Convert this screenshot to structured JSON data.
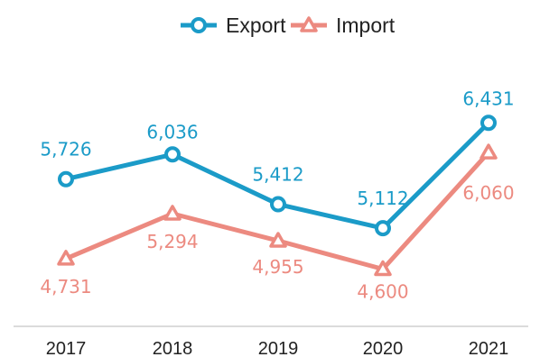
{
  "chart_data": {
    "type": "line",
    "categories": [
      "2017",
      "2018",
      "2019",
      "2020",
      "2021"
    ],
    "series": [
      {
        "name": "Export",
        "values": [
          5726,
          6036,
          5412,
          5112,
          6431
        ],
        "labels": [
          "5,726",
          "6,036",
          "5,412",
          "5,112",
          "6,431"
        ],
        "color": "#1b9bc8",
        "marker": "circle"
      },
      {
        "name": "Import",
        "values": [
          4731,
          5294,
          4955,
          4600,
          6060
        ],
        "labels": [
          "4,731",
          "5,294",
          "4,955",
          "4,600",
          "6,060"
        ],
        "color": "#ec8a80",
        "marker": "triangle"
      }
    ],
    "legend": "top-center",
    "grid": false
  }
}
